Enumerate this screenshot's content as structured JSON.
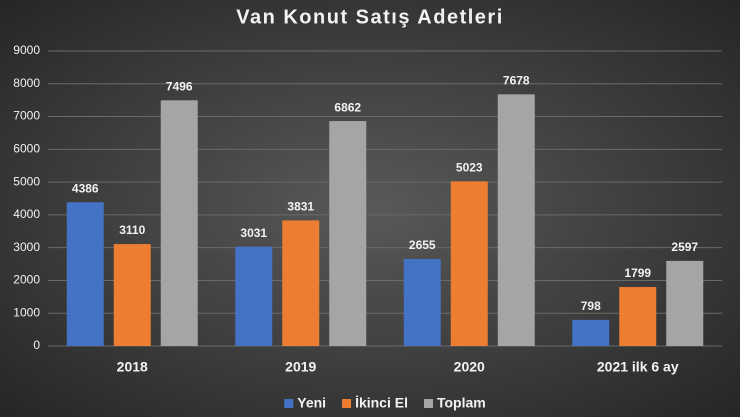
{
  "chart_data": {
    "type": "bar",
    "title": "Van Konut Satış Adetleri",
    "categories": [
      "2018",
      "2019",
      "2020",
      "2021 ilk 6 ay"
    ],
    "series": [
      {
        "name": "Yeni",
        "color": "#4472c4",
        "values": [
          4386,
          3031,
          2655,
          798
        ]
      },
      {
        "name": "İkinci El",
        "color": "#ed7d31",
        "values": [
          3110,
          3831,
          5023,
          1799
        ]
      },
      {
        "name": "Toplam",
        "color": "#a5a5a5",
        "values": [
          7496,
          6862,
          7678,
          2597
        ]
      }
    ],
    "ylim": [
      0,
      9000
    ],
    "yticks": [
      0,
      1000,
      2000,
      3000,
      4000,
      5000,
      6000,
      7000,
      8000,
      9000
    ],
    "grid": true,
    "legend": "bottom"
  }
}
